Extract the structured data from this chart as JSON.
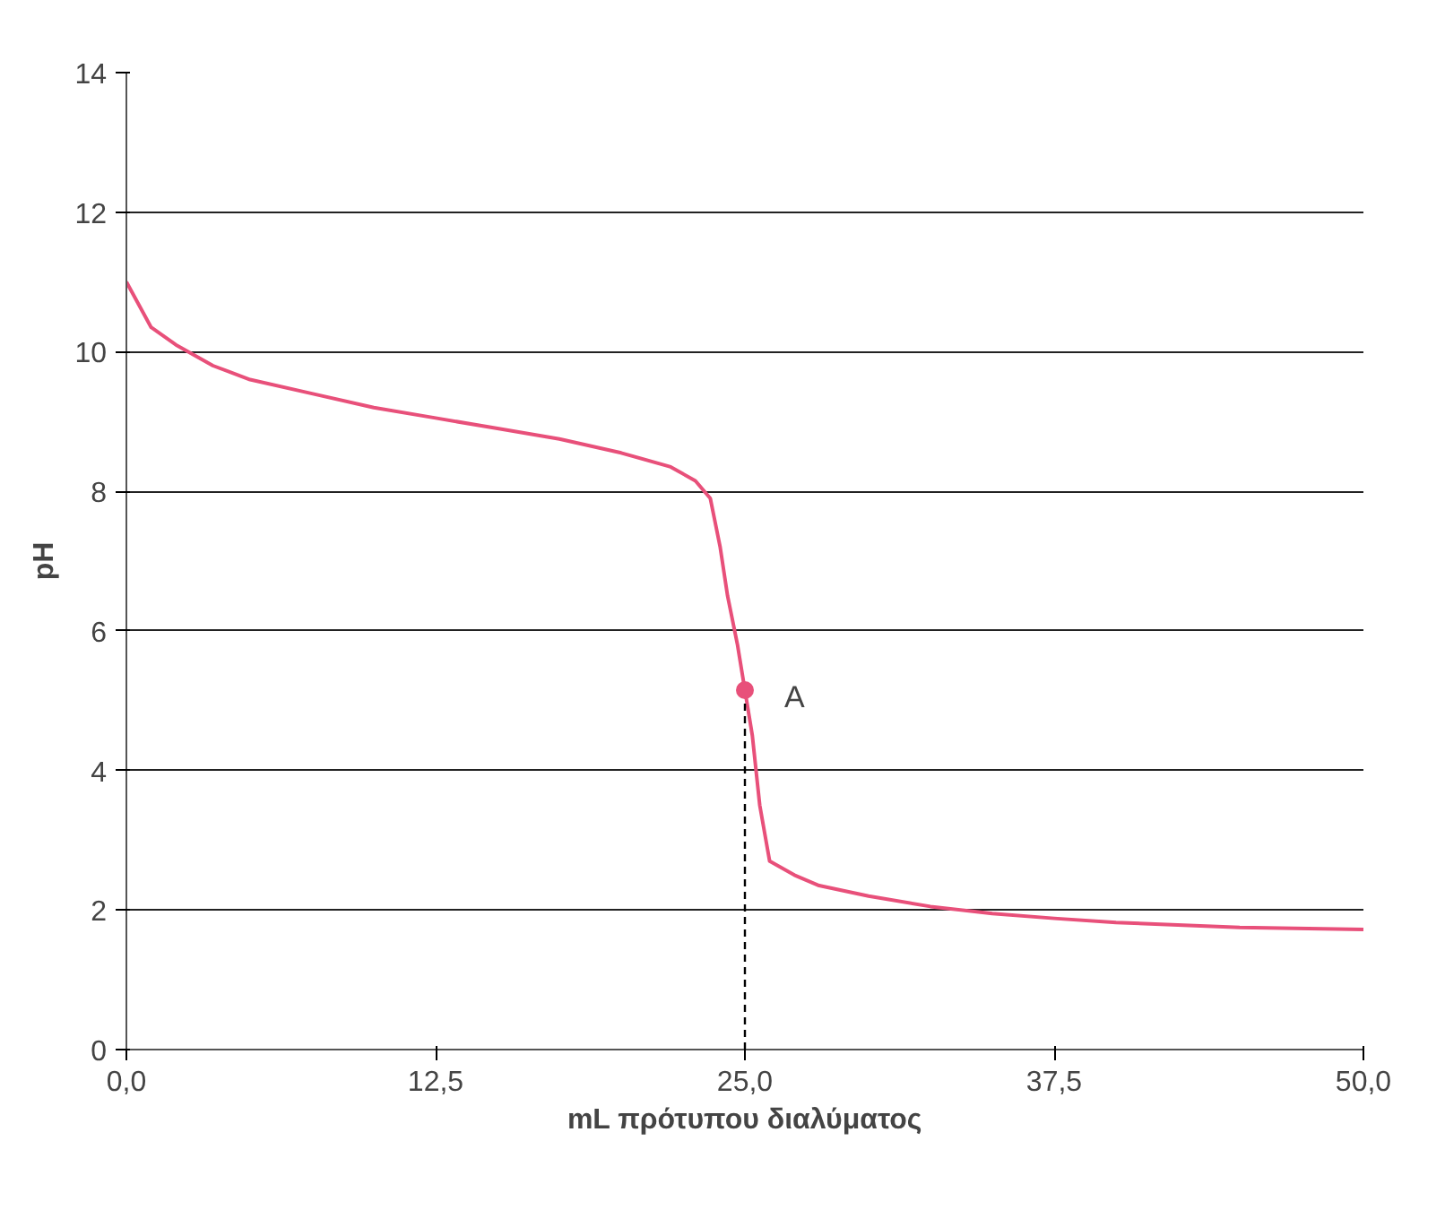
{
  "chart_data": {
    "type": "line",
    "xlabel": "mL πρότυπου διαλύματος",
    "ylabel": "pH",
    "xlim": [
      0,
      50
    ],
    "ylim": [
      0,
      14
    ],
    "xticks": [
      {
        "value": 0,
        "label": "0,0"
      },
      {
        "value": 12.5,
        "label": "12,5"
      },
      {
        "value": 25,
        "label": "25,0"
      },
      {
        "value": 37.5,
        "label": "37,5"
      },
      {
        "value": 50,
        "label": "50,0"
      }
    ],
    "yticks": [
      0,
      2,
      4,
      6,
      8,
      10,
      12,
      14
    ],
    "grid": "y",
    "marker": "none",
    "line_style": "solid",
    "series": [
      {
        "color": "#e8507a",
        "x": [
          0,
          1,
          2,
          3.5,
          5,
          7.5,
          10,
          12.5,
          15,
          17.5,
          20,
          22,
          23,
          23.6,
          24,
          24.3,
          24.7,
          25,
          25.3,
          25.6,
          26,
          27,
          28,
          30,
          32.5,
          35,
          37.5,
          40,
          45,
          50
        ],
        "values": [
          11,
          10.35,
          10.1,
          9.8,
          9.6,
          9.4,
          9.2,
          9.05,
          8.9,
          8.75,
          8.55,
          8.35,
          8.15,
          7.9,
          7.2,
          6.5,
          5.8,
          5.15,
          4.5,
          3.5,
          2.7,
          2.5,
          2.35,
          2.2,
          2.05,
          1.95,
          1.88,
          1.82,
          1.75,
          1.72
        ]
      },
      {
        "type": "line",
        "color": "#000000",
        "line_style": "dashed",
        "x": [
          25,
          25
        ],
        "values": [
          0,
          5.15
        ]
      },
      {
        "type": "scatter",
        "color": "#e8507a",
        "marker": "circle",
        "x": [
          25
        ],
        "values": [
          5.15
        ]
      }
    ],
    "annotations": [
      {
        "text": "A",
        "x": 25,
        "y": 5.15
      }
    ]
  }
}
